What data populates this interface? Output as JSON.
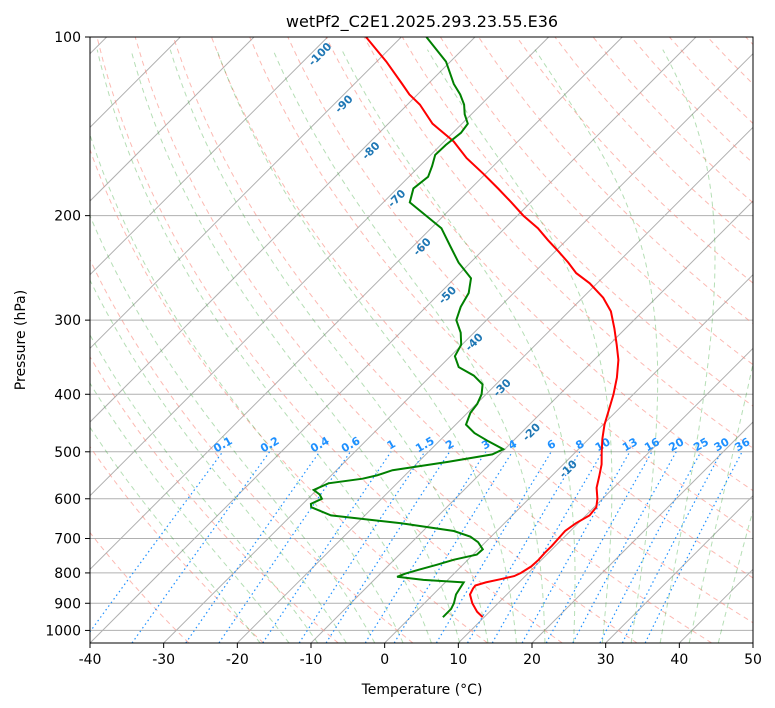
{
  "chart_data": {
    "type": "skew-t log-p",
    "title": "wetPf2_C2E1.2025.293.23.55.E36",
    "xlabel": "Temperature (°C)",
    "ylabel": "Pressure (hPa)",
    "xlim": [
      -40,
      50
    ],
    "ylim_hpa": [
      1050,
      100
    ],
    "y_scale": "log",
    "x_ticks": [
      -40,
      -30,
      -20,
      -10,
      0,
      10,
      20,
      30,
      40,
      50
    ],
    "y_ticks": [
      100,
      200,
      300,
      400,
      500,
      600,
      700,
      800,
      900,
      1000
    ],
    "grid": true,
    "colors": {
      "temperature": "#ff0000",
      "dewpoint": "#008000",
      "isotherm": "#b0b0b0",
      "dry_adiabat": "#fa8072",
      "moist_adiabat": "#2ca02c",
      "mixing_ratio": "#1e90ff",
      "frost_point_label": "#1f77b4",
      "wetbulb_label": "#d62728",
      "zero_label": "#808080",
      "outer_curve": "#d2b48c"
    },
    "series": [
      {
        "kind": "temperature",
        "points_p_t": [
          [
            950,
            9.8
          ],
          [
            930,
            8.3
          ],
          [
            900,
            6.5
          ],
          [
            870,
            5.0
          ],
          [
            850,
            4.6
          ],
          [
            840,
            4.5
          ],
          [
            830,
            5.5
          ],
          [
            820,
            7.0
          ],
          [
            810,
            8.5
          ],
          [
            800,
            9.0
          ],
          [
            780,
            9.5
          ],
          [
            760,
            9.6
          ],
          [
            740,
            9.5
          ],
          [
            720,
            9.5
          ],
          [
            700,
            9.4
          ],
          [
            680,
            9.3
          ],
          [
            660,
            9.7
          ],
          [
            640,
            10.5
          ],
          [
            620,
            10.3
          ],
          [
            600,
            9.3
          ],
          [
            575,
            7.7
          ],
          [
            550,
            6.5
          ],
          [
            525,
            5.2
          ],
          [
            500,
            3.5
          ],
          [
            475,
            1.8
          ],
          [
            450,
            0.2
          ],
          [
            425,
            -1.2
          ],
          [
            400,
            -2.7
          ],
          [
            375,
            -4.5
          ],
          [
            350,
            -6.7
          ],
          [
            330,
            -9.0
          ],
          [
            310,
            -11.5
          ],
          [
            290,
            -14.3
          ],
          [
            275,
            -17.2
          ],
          [
            260,
            -21.0
          ],
          [
            250,
            -24.2
          ],
          [
            240,
            -26.7
          ],
          [
            230,
            -29.5
          ],
          [
            220,
            -32.5
          ],
          [
            210,
            -35.5
          ],
          [
            200,
            -39.2
          ],
          [
            190,
            -42.6
          ],
          [
            180,
            -46.3
          ],
          [
            170,
            -50.3
          ],
          [
            160,
            -54.7
          ],
          [
            150,
            -58.7
          ],
          [
            140,
            -64.0
          ],
          [
            130,
            -68.3
          ],
          [
            125,
            -71.1
          ],
          [
            120,
            -73.5
          ],
          [
            110,
            -78.7
          ],
          [
            100,
            -84.8
          ]
        ]
      },
      {
        "kind": "dewpoint",
        "points_p_t": [
          [
            950,
            4.4
          ],
          [
            920,
            4.4
          ],
          [
            900,
            4.0
          ],
          [
            870,
            3.1
          ],
          [
            850,
            2.8
          ],
          [
            830,
            2.5
          ],
          [
            822,
            -3.3
          ],
          [
            812,
            -7.3
          ],
          [
            802,
            -6.6
          ],
          [
            790,
            -5.3
          ],
          [
            775,
            -3.5
          ],
          [
            760,
            -1.9
          ],
          [
            745,
            0.5
          ],
          [
            730,
            0.6
          ],
          [
            710,
            -1.0
          ],
          [
            695,
            -2.8
          ],
          [
            680,
            -5.8
          ],
          [
            660,
            -14.0
          ],
          [
            640,
            -24.6
          ],
          [
            620,
            -28.4
          ],
          [
            612,
            -28.9
          ],
          [
            600,
            -28.1
          ],
          [
            590,
            -29.0
          ],
          [
            580,
            -30.4
          ],
          [
            565,
            -29.3
          ],
          [
            555,
            -25.3
          ],
          [
            548,
            -23.8
          ],
          [
            537,
            -22.4
          ],
          [
            520,
            -16.0
          ],
          [
            505,
            -11.0
          ],
          [
            495,
            -10.2
          ],
          [
            480,
            -13.3
          ],
          [
            465,
            -16.3
          ],
          [
            450,
            -18.6
          ],
          [
            430,
            -19.6
          ],
          [
            415,
            -19.9
          ],
          [
            400,
            -20.6
          ],
          [
            385,
            -21.8
          ],
          [
            372,
            -24.2
          ],
          [
            360,
            -27.4
          ],
          [
            345,
            -29.4
          ],
          [
            330,
            -30.1
          ],
          [
            315,
            -31.8
          ],
          [
            300,
            -34.1
          ],
          [
            285,
            -35.3
          ],
          [
            270,
            -36.1
          ],
          [
            255,
            -37.8
          ],
          [
            240,
            -41.6
          ],
          [
            225,
            -45.0
          ],
          [
            210,
            -48.6
          ],
          [
            200,
            -52.4
          ],
          [
            190,
            -56.4
          ],
          [
            180,
            -57.8
          ],
          [
            172,
            -57.4
          ],
          [
            165,
            -58.3
          ],
          [
            158,
            -59.4
          ],
          [
            152,
            -59.3
          ],
          [
            145,
            -58.9
          ],
          [
            140,
            -59.2
          ],
          [
            135,
            -60.9
          ],
          [
            130,
            -62.3
          ],
          [
            125,
            -64.2
          ],
          [
            120,
            -66.5
          ],
          [
            110,
            -70.6
          ],
          [
            100,
            -76.6
          ]
        ]
      }
    ],
    "mixing_ratio_labels": [
      "0.1",
      "0.2",
      "0.4",
      "0.6",
      "1",
      "1.5",
      "2",
      "3",
      "4",
      "6",
      "8",
      "10",
      "13",
      "16",
      "20",
      "25",
      "30",
      "36"
    ],
    "mixing_ratio_values": [
      0.1,
      0.2,
      0.4,
      0.6,
      1,
      1.5,
      2,
      3,
      4,
      6,
      8,
      10,
      13,
      16,
      20,
      25,
      30,
      36
    ],
    "frost_point_labels": [
      "-100",
      "-90",
      "-80",
      "-70",
      "-60",
      "-50",
      "-40",
      "-30",
      "-20",
      "-10"
    ],
    "wetbulb_labels": [
      "10",
      "20",
      "30",
      "40"
    ],
    "zero_label": "0"
  }
}
